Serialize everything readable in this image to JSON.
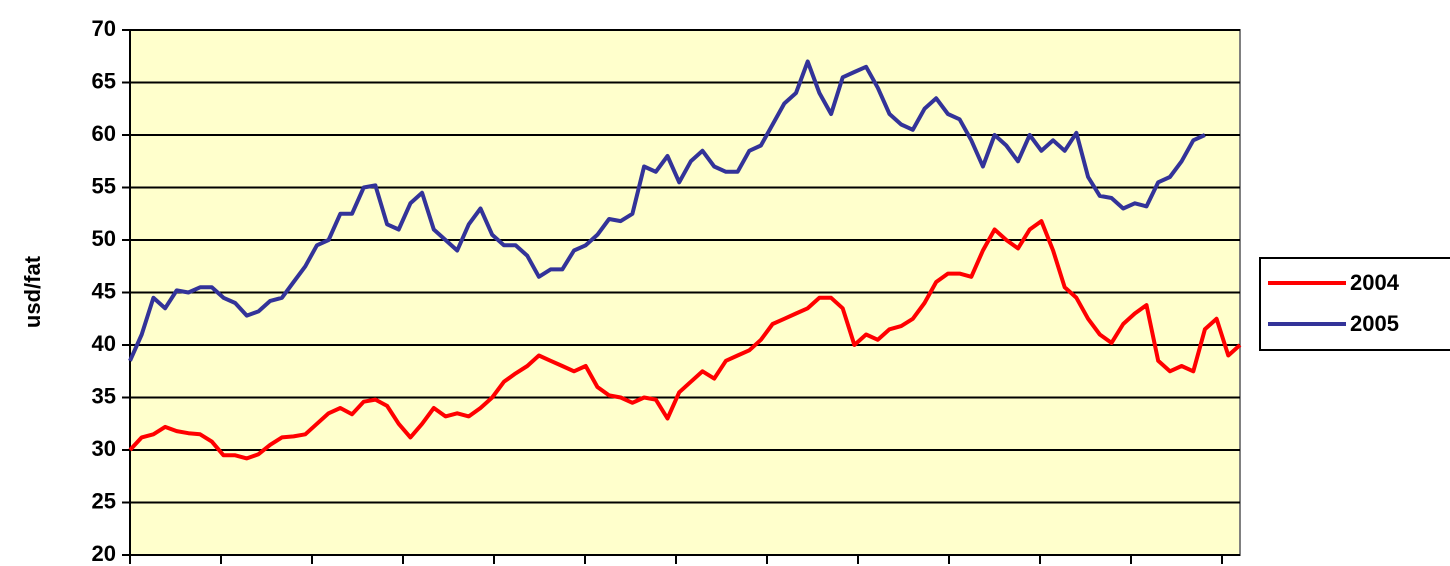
{
  "chart_data": {
    "type": "line",
    "ylabel": "usd/fat",
    "categories": [
      null,
      null,
      null,
      null,
      null,
      null,
      null,
      null,
      null,
      null,
      null,
      null,
      null,
      null,
      null,
      null,
      null,
      null,
      null,
      null,
      null,
      null,
      null,
      null,
      null,
      null,
      null,
      null,
      null,
      null,
      null,
      null,
      null,
      null,
      null,
      null,
      null,
      null,
      null,
      null,
      null,
      null,
      null,
      null,
      null,
      null,
      null,
      null,
      null,
      null,
      null,
      null,
      null,
      null,
      null,
      null,
      null,
      null,
      null,
      null,
      null,
      null,
      null,
      null,
      null,
      null,
      null,
      null,
      null,
      null,
      null,
      null,
      null,
      null,
      null,
      null,
      null,
      null,
      null,
      null,
      null,
      null,
      null,
      null,
      null,
      null,
      null,
      null,
      null,
      null,
      null,
      null,
      null,
      null,
      null,
      null
    ],
    "series": [
      {
        "name": "2004",
        "color": "#ff0000",
        "values": [
          30,
          31.2,
          31.5,
          32.2,
          31.8,
          31.6,
          31.5,
          30.8,
          29.5,
          29.5,
          29.2,
          29.6,
          30.5,
          31.2,
          31.3,
          31.5,
          32.5,
          33.5,
          34,
          33.4,
          34.6,
          34.8,
          34.2,
          32.5,
          31.2,
          32.5,
          34,
          33.2,
          33.5,
          33.2,
          34,
          35,
          36.5,
          37.3,
          38,
          39,
          38.5,
          38,
          37.5,
          38,
          36,
          35.2,
          35,
          34.5,
          35,
          34.8,
          33,
          35.5,
          36.5,
          37.5,
          36.8,
          38.5,
          39,
          39.5,
          40.5,
          42,
          42.5,
          43,
          43.5,
          44.5,
          44.5,
          43.5,
          40,
          41,
          40.5,
          41.5,
          41.8,
          42.5,
          44,
          46,
          46.8,
          46.8,
          46.5,
          49,
          51,
          50,
          49.2,
          51,
          51.8,
          49,
          45.5,
          44.5,
          42.5,
          41,
          40.2,
          42,
          43,
          43.8,
          38.5,
          37.5,
          38,
          37.5,
          41.5,
          42.5,
          39,
          40
        ]
      },
      {
        "name": "2005",
        "color": "#333399",
        "values": [
          38.5,
          41,
          44.5,
          43.5,
          45.2,
          45,
          45.5,
          45.5,
          44.5,
          44,
          42.8,
          43.2,
          44.2,
          44.5,
          46,
          47.5,
          49.5,
          50,
          52.5,
          52.5,
          55,
          55.2,
          51.5,
          51,
          53.5,
          54.5,
          51,
          50,
          49,
          51.5,
          53,
          50.5,
          49.5,
          49.5,
          48.5,
          46.5,
          47.2,
          47.2,
          49,
          49.5,
          50.5,
          52,
          51.8,
          52.5,
          57,
          56.5,
          58,
          55.5,
          57.5,
          58.5,
          57,
          56.5,
          56.5,
          58.5,
          59,
          61,
          63,
          64,
          67,
          64,
          62,
          65.5,
          66,
          66.5,
          64.5,
          62,
          61,
          60.5,
          62.5,
          63.5,
          62,
          61.5,
          59.5,
          57,
          60,
          59,
          57.5,
          60,
          58.5,
          59.5,
          58.5,
          60.2,
          56,
          54.2,
          54,
          53,
          53.5,
          53.2,
          55.5,
          56,
          57.5,
          59.5,
          60,
          null,
          null,
          null
        ]
      }
    ],
    "ylim": [
      20,
      70
    ],
    "yticks": [
      20,
      25,
      30,
      35,
      40,
      45,
      50,
      55,
      60,
      65,
      70
    ],
    "grid": true,
    "legend": "right",
    "background": "#ffffcc"
  }
}
